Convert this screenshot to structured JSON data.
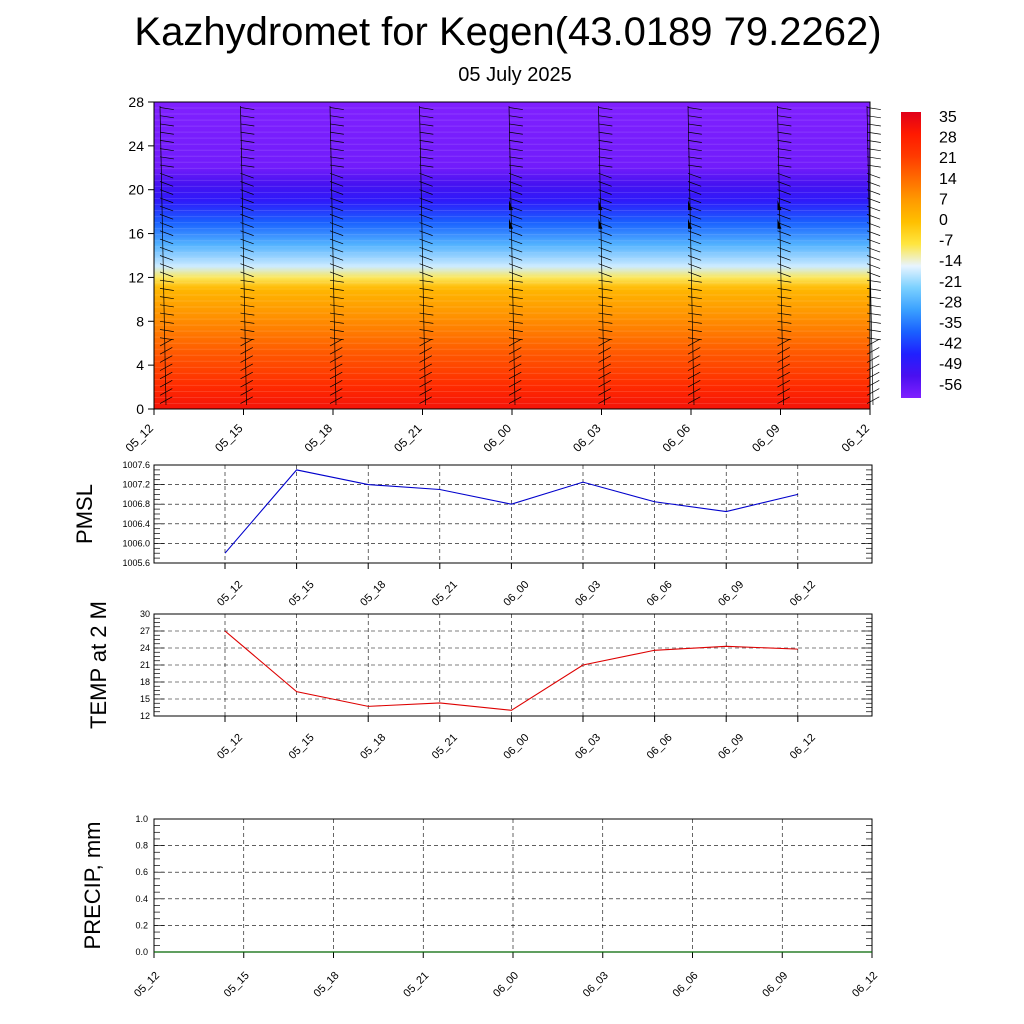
{
  "title": "Kazhydromet for Kegen(43.0189 79.2262)",
  "subtitle": "05 July 2025",
  "chart_data": [
    {
      "type": "heatmap",
      "description_of_axes": "height vs time",
      "x": [
        "05_12",
        "05_15",
        "05_18",
        "05_21",
        "06_00",
        "06_03",
        "06_06",
        "06_09",
        "06_12"
      ],
      "y_ticks": [
        0,
        4,
        8,
        12,
        16,
        20,
        24,
        28
      ],
      "ylim": [
        0,
        28
      ],
      "colorbar": {
        "labels": [
          "35",
          "28",
          "21",
          "14",
          "7",
          "0",
          "-7",
          "-14",
          "-21",
          "-28",
          "-35",
          "-42",
          "-49",
          "-56"
        ],
        "colors": [
          "#e0001a",
          "#ff1a00",
          "#ff3a00",
          "#ff6a00",
          "#ff9a00",
          "#ffc000",
          "#ffe640",
          "#e8f4ff",
          "#7ad0ff",
          "#3aa0ff",
          "#1a60ff",
          "#2020ff",
          "#4a10f0",
          "#8020ff"
        ]
      },
      "temperature_profile": [
        {
          "level": 0,
          "value": 30
        },
        {
          "level": 2,
          "value": 24
        },
        {
          "level": 5,
          "value": 16
        },
        {
          "level": 8,
          "value": 8
        },
        {
          "level": 11,
          "value": 0
        },
        {
          "level": 12,
          "value": -10
        },
        {
          "level": 13,
          "value": -18
        },
        {
          "level": 15,
          "value": -28
        },
        {
          "level": 17,
          "value": -38
        },
        {
          "level": 19,
          "value": -48
        },
        {
          "level": 20.5,
          "value": -52
        },
        {
          "level": 22,
          "value": -58
        },
        {
          "level": 28,
          "value": -60
        }
      ]
    },
    {
      "type": "line",
      "ylabel": "PMSL",
      "x": [
        "05_12",
        "05_15",
        "05_18",
        "05_21",
        "06_00",
        "06_03",
        "06_06",
        "06_09",
        "06_12"
      ],
      "values": [
        1005.8,
        1007.5,
        1007.2,
        1007.1,
        1006.8,
        1007.25,
        1006.85,
        1006.65,
        1007.0
      ],
      "ylim": [
        1005.6,
        1007.6
      ],
      "y_ticks": [
        "1005.6",
        "1006.0",
        "1006.4",
        "1006.8",
        "1007.2",
        "1007.6"
      ],
      "color": "#0000cc"
    },
    {
      "type": "line",
      "ylabel": "TEMP at 2 M",
      "x": [
        "05_12",
        "05_15",
        "05_18",
        "05_21",
        "06_00",
        "06_03",
        "06_06",
        "06_09",
        "06_12"
      ],
      "values": [
        27.0,
        16.3,
        13.7,
        14.3,
        13.0,
        21.0,
        23.6,
        24.3,
        23.8
      ],
      "ylim": [
        12,
        30
      ],
      "y_ticks": [
        "12",
        "15",
        "18",
        "21",
        "24",
        "27",
        "30"
      ],
      "color": "#dd0000"
    },
    {
      "type": "line",
      "ylabel": "PRECIP, mm",
      "x": [
        "05_12",
        "05_15",
        "05_18",
        "05_21",
        "06_00",
        "06_03",
        "06_06",
        "06_09",
        "06_12"
      ],
      "values": [
        0,
        0,
        0,
        0,
        0,
        0,
        0,
        0,
        0
      ],
      "ylim": [
        0,
        1.0
      ],
      "y_ticks": [
        "0.0",
        "0.2",
        "0.4",
        "0.6",
        "0.8",
        "1.0"
      ],
      "color": "#006600"
    }
  ]
}
